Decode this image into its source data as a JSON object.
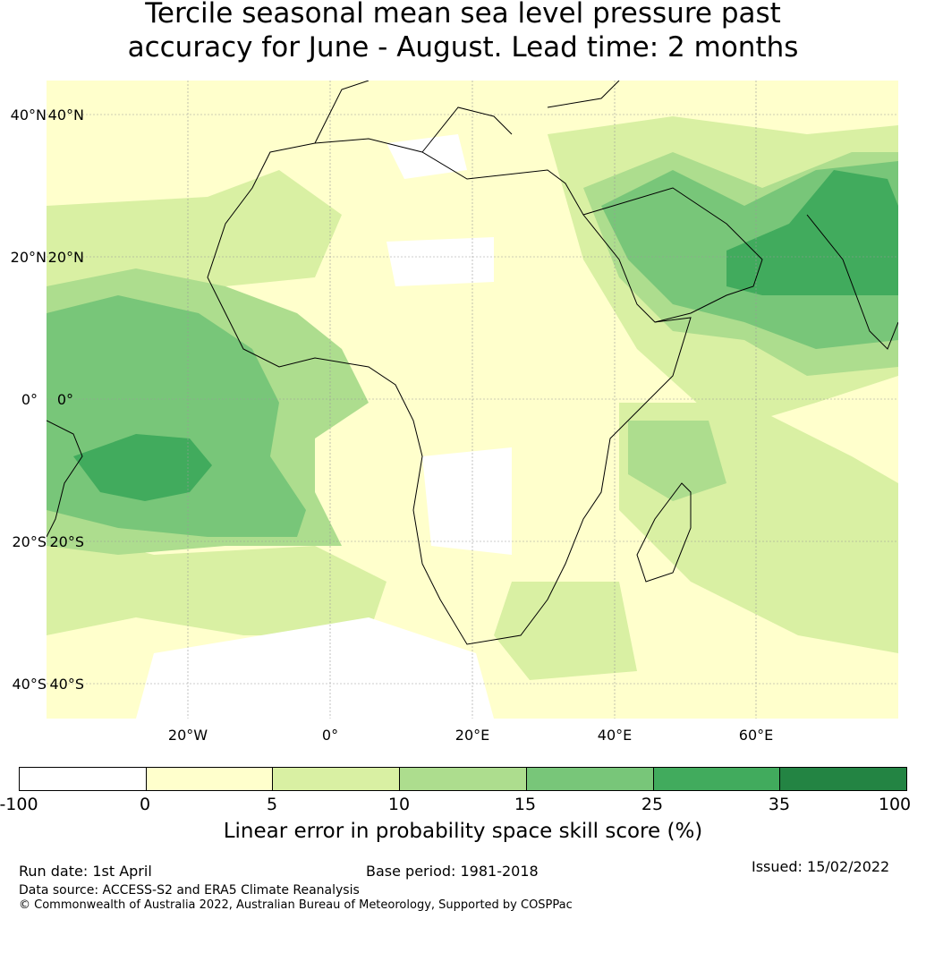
{
  "title_line1": "Tercile seasonal mean sea level pressure past",
  "title_line2": "accuracy for June - August. Lead time: 2 months",
  "map": {
    "lat_labels": [
      "40°N",
      "20°N",
      "0°",
      "20°S",
      "40°S"
    ],
    "lon_labels": [
      "20°W",
      "0°",
      "20°E",
      "40°E",
      "60°E"
    ]
  },
  "colorbar": {
    "ticks": [
      "-100",
      "0",
      "5",
      "10",
      "15",
      "25",
      "35",
      "100"
    ],
    "colors": [
      "#ffffff",
      "#ffffcc",
      "#d9f0a3",
      "#addd8e",
      "#78c679",
      "#41ab5d",
      "#238443"
    ],
    "label": "Linear error in probability space skill score (%)"
  },
  "footer": {
    "run_date": "Run date: 1st April",
    "base_period": "Base period: 1981-2018",
    "issued": "Issued: 15/02/2022",
    "data_source": "Data source: ACCESS-S2 and ERA5 Climate Reanalysis",
    "copyright": "© Commonwealth of Australia 2022, Australian Bureau of Meteorology, Supported by COSPPac"
  }
}
